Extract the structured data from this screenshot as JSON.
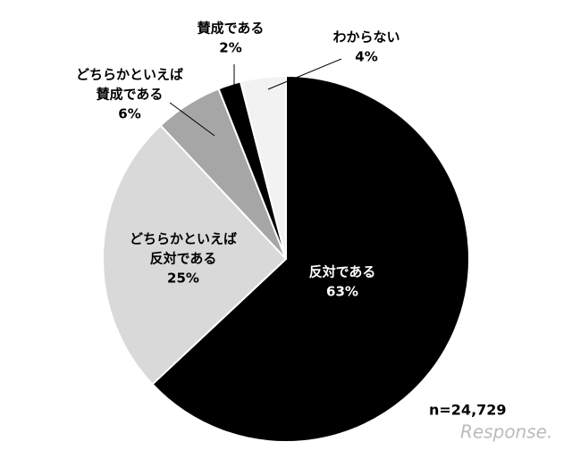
{
  "chart_data": {
    "type": "pie",
    "categories": [
      [
        "反対である"
      ],
      [
        "どちらかといえば",
        "反対である"
      ],
      [
        "どちらかといえば",
        "賛成である"
      ],
      [
        "賛成である"
      ],
      [
        "わからない"
      ]
    ],
    "values": [
      63,
      25,
      6,
      2,
      4
    ],
    "value_labels": [
      "63%",
      "25%",
      "6%",
      "2%",
      "4%"
    ],
    "colors": [
      "#000000",
      "#d9d9d9",
      "#a6a6a6",
      "#000000",
      "#f2f2f2"
    ],
    "annotation": "n=24,729",
    "watermark": "Response."
  }
}
